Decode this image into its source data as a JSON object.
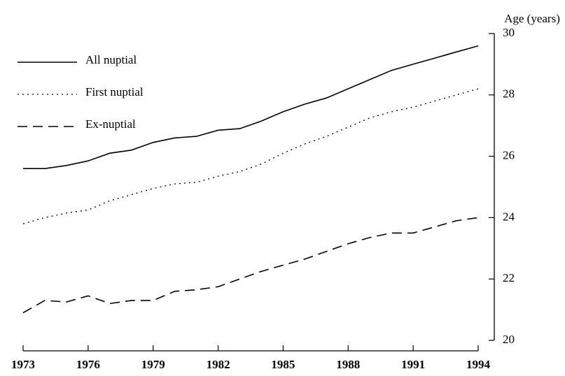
{
  "chart_data": {
    "type": "line",
    "y_label": "Age (years)",
    "x": [
      1973,
      1974,
      1975,
      1976,
      1977,
      1978,
      1979,
      1980,
      1981,
      1982,
      1983,
      1984,
      1985,
      1986,
      1987,
      1988,
      1989,
      1990,
      1991,
      1992,
      1993,
      1994
    ],
    "series": [
      {
        "name": "All nuptial",
        "color": "#000000",
        "dash": "solid",
        "values": [
          25.6,
          25.6,
          25.7,
          25.85,
          26.1,
          26.2,
          26.45,
          26.6,
          26.65,
          26.85,
          26.9,
          27.15,
          27.45,
          27.7,
          27.9,
          28.2,
          28.5,
          28.8,
          29.0,
          29.2,
          29.4,
          29.6
        ]
      },
      {
        "name": "First nuptial",
        "color": "#000000",
        "dash": "dotted",
        "values": [
          23.8,
          24.0,
          24.15,
          24.25,
          24.55,
          24.75,
          24.95,
          25.1,
          25.15,
          25.35,
          25.5,
          25.75,
          26.1,
          26.4,
          26.65,
          26.95,
          27.25,
          27.45,
          27.6,
          27.8,
          28.0,
          28.2
        ]
      },
      {
        "name": "Ex-nuptial",
        "color": "#000000",
        "dash": "dashed",
        "values": [
          20.9,
          21.3,
          21.25,
          21.45,
          21.2,
          21.3,
          21.3,
          21.6,
          21.65,
          21.75,
          22.0,
          22.25,
          22.45,
          22.65,
          22.9,
          23.15,
          23.35,
          23.5,
          23.5,
          23.7,
          23.9,
          24.0
        ]
      }
    ],
    "xlim": [
      1973,
      1994
    ],
    "xticks": [
      1973,
      1976,
      1979,
      1982,
      1985,
      1988,
      1991,
      1994
    ],
    "ylim": [
      20,
      30
    ],
    "yticks": [
      20,
      22,
      24,
      26,
      28,
      30
    ],
    "y_axis_side": "right",
    "legend": "upper left",
    "grid": false
  }
}
